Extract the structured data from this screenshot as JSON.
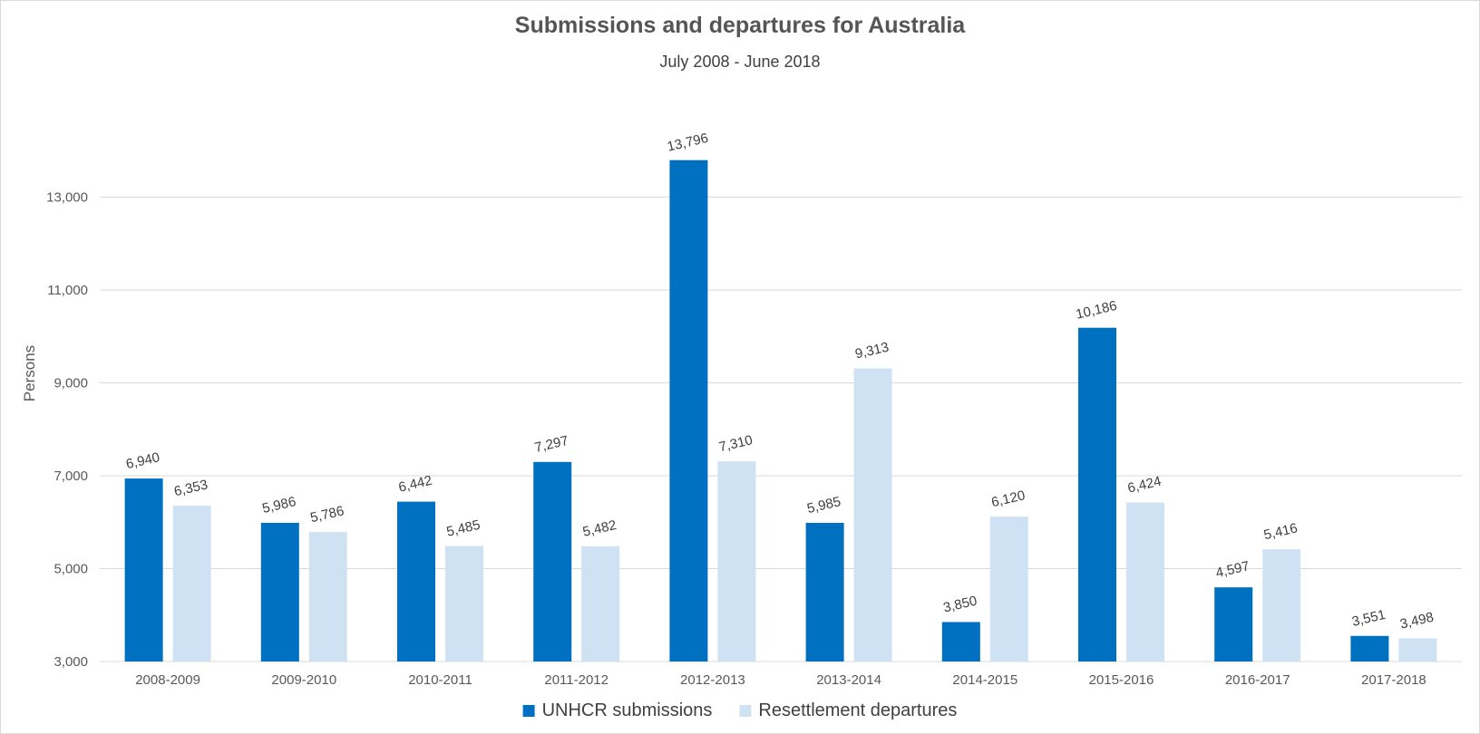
{
  "chart_data": {
    "type": "bar",
    "title": "Submissions and departures for Australia",
    "subtitle": "July 2008 - June 2018",
    "ylabel": "Persons",
    "xlabel": "",
    "ylim": [
      3000,
      15000
    ],
    "yticks": [
      3000,
      5000,
      7000,
      9000,
      11000,
      13000
    ],
    "ytick_labels": [
      "3,000",
      "5,000",
      "7,000",
      "9,000",
      "11,000",
      "13,000"
    ],
    "grid": true,
    "legend_position": "bottom",
    "categories": [
      "2008-2009",
      "2009-2010",
      "2010-2011",
      "2011-2012",
      "2012-2013",
      "2013-2014",
      "2014-2015",
      "2015-2016",
      "2016-2017",
      "2017-2018"
    ],
    "series": [
      {
        "name": "UNHCR submissions",
        "color": "#0070C0",
        "values": [
          6940,
          5986,
          6442,
          7297,
          13796,
          5985,
          3850,
          10186,
          4597,
          3551
        ],
        "labels": [
          "6,940",
          "5,986",
          "6,442",
          "7,297",
          "13,796",
          "5,985",
          "3,850",
          "10,186",
          "4,597",
          "3,551"
        ]
      },
      {
        "name": "Resettlement departures",
        "color": "#CFE2F3",
        "values": [
          6353,
          5786,
          5485,
          5482,
          7310,
          9313,
          6120,
          6424,
          5416,
          3498
        ],
        "labels": [
          "6,353",
          "5,786",
          "5,485",
          "5,482",
          "7,310",
          "9,313",
          "6,120",
          "6,424",
          "5,416",
          "3,498"
        ]
      }
    ]
  }
}
